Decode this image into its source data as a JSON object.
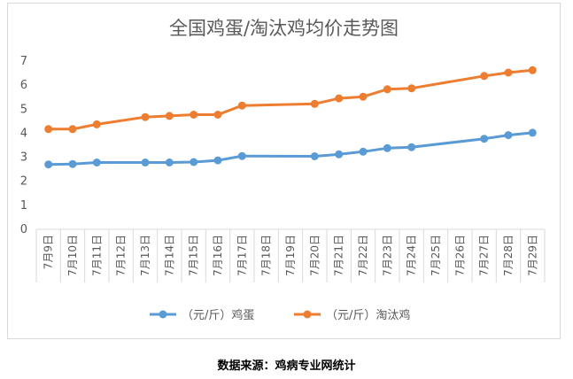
{
  "caption": "数据来源：鸡病专业网统计",
  "chart_data": {
    "type": "line",
    "title": "全国鸡蛋/淘汰鸡均价走势图",
    "categories": [
      "7月9日",
      "7月10日",
      "7月11日",
      "7月12日",
      "7月13日",
      "7月14日",
      "7月15日",
      "7月16日",
      "7月17日",
      "7月18日",
      "7月19日",
      "7月20日",
      "7月21日",
      "7月22日",
      "7月23日",
      "7月24日",
      "7月25日",
      "7月26日",
      "7月27日",
      "7月28日",
      "7月29日"
    ],
    "y_ticks": [
      "0",
      "1",
      "2",
      "3",
      "4",
      "5",
      "6",
      "7"
    ],
    "ylim": [
      0,
      7
    ],
    "grid": false,
    "legend_position": "bottom",
    "series": [
      {
        "name": "（元/斤）鸡蛋",
        "color": "#5b9bd5",
        "points": [
          [
            "7月9日",
            2.7
          ],
          [
            "7月10日",
            2.72
          ],
          [
            "7月11日",
            2.78
          ],
          [
            "7月13日",
            2.78
          ],
          [
            "7月14日",
            2.78
          ],
          [
            "7月15日",
            2.8
          ],
          [
            "7月16日",
            2.87
          ],
          [
            "7月17日",
            3.05
          ],
          [
            "7月20日",
            3.04
          ],
          [
            "7月21日",
            3.12
          ],
          [
            "7月22日",
            3.23
          ],
          [
            "7月23日",
            3.38
          ],
          [
            "7月24日",
            3.42
          ],
          [
            "7月27日",
            3.77
          ],
          [
            "7月28日",
            3.92
          ],
          [
            "7月29日",
            4.02
          ]
        ]
      },
      {
        "name": "（元/斤）淘汰鸡",
        "color": "#ed7d31",
        "points": [
          [
            "7月9日",
            4.17
          ],
          [
            "7月10日",
            4.17
          ],
          [
            "7月11日",
            4.37
          ],
          [
            "7月13日",
            4.67
          ],
          [
            "7月14日",
            4.72
          ],
          [
            "7月15日",
            4.77
          ],
          [
            "7月16日",
            4.77
          ],
          [
            "7月17日",
            5.15
          ],
          [
            "7月20日",
            5.22
          ],
          [
            "7月21日",
            5.45
          ],
          [
            "7月22日",
            5.52
          ],
          [
            "7月23日",
            5.83
          ],
          [
            "7月24日",
            5.87
          ],
          [
            "7月27日",
            6.38
          ],
          [
            "7月28日",
            6.52
          ],
          [
            "7月29日",
            6.62
          ]
        ]
      }
    ]
  }
}
